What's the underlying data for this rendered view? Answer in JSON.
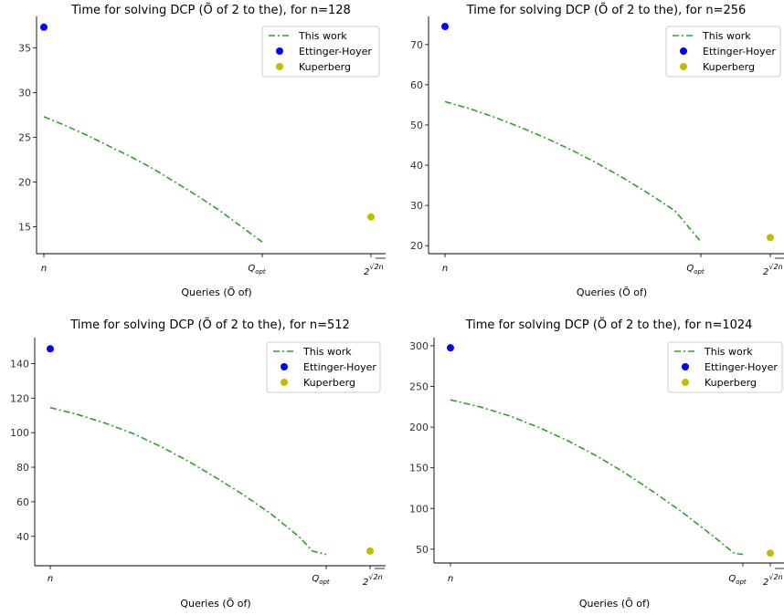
{
  "colors": {
    "this_work": "#2ca02c",
    "ettinger_hoyer": "#0000ff",
    "kuperberg": "#bfbf00"
  },
  "chart_data": [
    {
      "type": "line",
      "title": "Time for solving DCP (Õ of 2 to the), for n=128",
      "xlabel": "Queries (Õ of)",
      "xtick_labels": [
        "n",
        "Qopt",
        "2^√(2n)"
      ],
      "ylim": [
        12,
        38.5
      ],
      "yticks": [
        15,
        20,
        25,
        30,
        35
      ],
      "legend": "top-right",
      "grid": false,
      "series": [
        {
          "name": "This work",
          "style": "dash-dot",
          "x": [
            0,
            0.1,
            0.2,
            0.3,
            0.4,
            0.5,
            0.6,
            0.7,
            0.8,
            0.9,
            1.0
          ],
          "y": [
            27.3,
            26.3,
            25.2,
            24.0,
            22.8,
            21.5,
            20.0,
            18.5,
            16.9,
            15.1,
            13.3
          ]
        },
        {
          "name": "Ettinger-Hoyer",
          "style": "point",
          "x": [
            0
          ],
          "y": [
            37.3
          ]
        },
        {
          "name": "Kuperberg",
          "style": "point",
          "x": [
            1.5
          ],
          "y": [
            16.1
          ]
        }
      ]
    },
    {
      "type": "line",
      "title": "Time for solving DCP (Õ of 2 to the), for n=256",
      "xlabel": "Queries (Õ of)",
      "xtick_labels": [
        "n",
        "Qopt",
        "2^√(2n)"
      ],
      "ylim": [
        18,
        77
      ],
      "yticks": [
        20,
        30,
        40,
        50,
        60,
        70
      ],
      "legend": "top-right",
      "grid": false,
      "series": [
        {
          "name": "This work",
          "style": "dash-dot",
          "x": [
            0,
            0.1,
            0.2,
            0.3,
            0.4,
            0.5,
            0.6,
            0.7,
            0.8,
            0.9,
            1.0
          ],
          "y": [
            55.8,
            54.0,
            51.8,
            49.3,
            46.6,
            43.6,
            40.3,
            36.7,
            32.8,
            28.6,
            21.0
          ]
        },
        {
          "name": "Ettinger-Hoyer",
          "style": "point",
          "x": [
            0
          ],
          "y": [
            74.5
          ]
        },
        {
          "name": "Kuperberg",
          "style": "point",
          "x": [
            1.5
          ],
          "y": [
            22.0
          ]
        }
      ]
    },
    {
      "type": "line",
      "title": "Time for solving DCP (Õ of 2 to the), for n=512",
      "xlabel": "Queries (Õ of)",
      "xtick_labels": [
        "n",
        "Qopt",
        "2^√(2n)"
      ],
      "ylim": [
        23,
        155
      ],
      "yticks": [
        40,
        60,
        80,
        100,
        120,
        140
      ],
      "legend": "top-right",
      "grid": false,
      "series": [
        {
          "name": "This work",
          "style": "dash-dot",
          "x": [
            0,
            0.1,
            0.2,
            0.3,
            0.4,
            0.5,
            0.6,
            0.7,
            0.8,
            0.9,
            0.95,
            1.0
          ],
          "y": [
            114.5,
            110.5,
            105.5,
            99.5,
            92.0,
            83.5,
            74.0,
            64.0,
            53.0,
            40.0,
            31.5,
            29.5
          ]
        },
        {
          "name": "Ettinger-Hoyer",
          "style": "point",
          "x": [
            0
          ],
          "y": [
            148.5
          ]
        },
        {
          "name": "Kuperberg",
          "style": "point",
          "x": [
            1.2
          ],
          "y": [
            31.5
          ]
        }
      ]
    },
    {
      "type": "line",
      "title": "Time for solving DCP (Õ of 2 to the), for n=1024",
      "xlabel": "Queries (Õ of)",
      "xtick_labels": [
        "n",
        "Qopt",
        "2^√(2n)"
      ],
      "ylim": [
        33,
        310
      ],
      "yticks": [
        50,
        100,
        150,
        200,
        250,
        300
      ],
      "legend": "top-right",
      "grid": false,
      "series": [
        {
          "name": "This work",
          "style": "dash-dot",
          "x": [
            0,
            0.1,
            0.2,
            0.3,
            0.4,
            0.5,
            0.6,
            0.7,
            0.8,
            0.9,
            0.97,
            1.0
          ],
          "y": [
            233.5,
            225.0,
            214.0,
            200.0,
            183.5,
            164.5,
            143.0,
            119.0,
            93.5,
            65.5,
            45.0,
            43.5
          ]
        },
        {
          "name": "Ettinger-Hoyer",
          "style": "point",
          "x": [
            0
          ],
          "y": [
            297.5
          ]
        },
        {
          "name": "Kuperberg",
          "style": "point",
          "x": [
            1.1
          ],
          "y": [
            45.0
          ]
        }
      ]
    }
  ]
}
